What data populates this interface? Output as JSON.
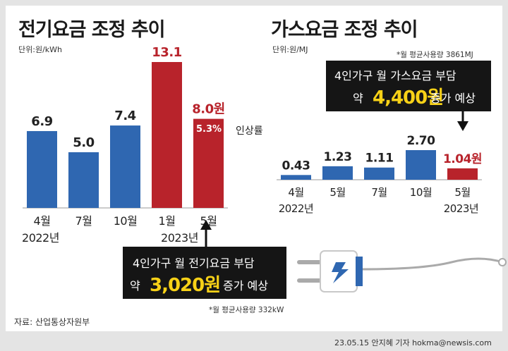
{
  "chart_data": [
    {
      "type": "bar",
      "title": "전기요금 조정 추이",
      "unit_label": "단위:원/kWh",
      "categories": [
        "4월",
        "7월",
        "10월",
        "1월",
        "5월"
      ],
      "year_labels": [
        "2022년",
        "2023년"
      ],
      "values": [
        6.9,
        5.0,
        7.4,
        13.1,
        8.0
      ],
      "value_labels": [
        "6.9",
        "5.0",
        "7.4",
        "13.1",
        "8.0원"
      ],
      "bar_colors": [
        "#2f67b1",
        "#2f67b1",
        "#2f67b1",
        "#b8232b",
        "#b8232b"
      ],
      "annotation_value": "5.3%",
      "annotation_label": "인상률",
      "ylim": [
        0,
        13.1
      ]
    },
    {
      "type": "bar",
      "title": "가스요금 조정 추이",
      "unit_label": "단위:원/MJ",
      "categories": [
        "4월",
        "5월",
        "7월",
        "10월",
        "5월"
      ],
      "year_labels": [
        "2022년",
        "2023년"
      ],
      "values": [
        0.43,
        1.23,
        1.11,
        2.7,
        1.04
      ],
      "value_labels": [
        "0.43",
        "1.23",
        "1.11",
        "2.70",
        "1.04원"
      ],
      "bar_colors": [
        "#2f67b1",
        "#2f67b1",
        "#2f67b1",
        "#2f67b1",
        "#b8232b"
      ],
      "footnote": "*월 평균사용량 3861MJ",
      "ylim": [
        0,
        2.7
      ]
    }
  ],
  "colors": {
    "blue": "#2f67b1",
    "red": "#b8232b",
    "yellow": "#f7d117",
    "callout_bg": "#151515"
  },
  "gas_callout": {
    "line1": "4인가구 월 가스요금 부담",
    "prefix": "약",
    "amount": "4,400원",
    "suffix": "증가 예상"
  },
  "elec_callout": {
    "line1": "4인가구 월 전기요금 부담",
    "prefix": "약",
    "amount": "3,020원",
    "suffix": "증가 예상"
  },
  "elec_footnote": "*월 평균사용량 332kW",
  "source": "자료: 산업통상자원부",
  "credit": "23.05.15 안지혜 기자 hokma@newsis.com",
  "icons": [
    "plug-icon",
    "lightning-icon",
    "arrow-up-icon",
    "arrow-down-icon"
  ]
}
